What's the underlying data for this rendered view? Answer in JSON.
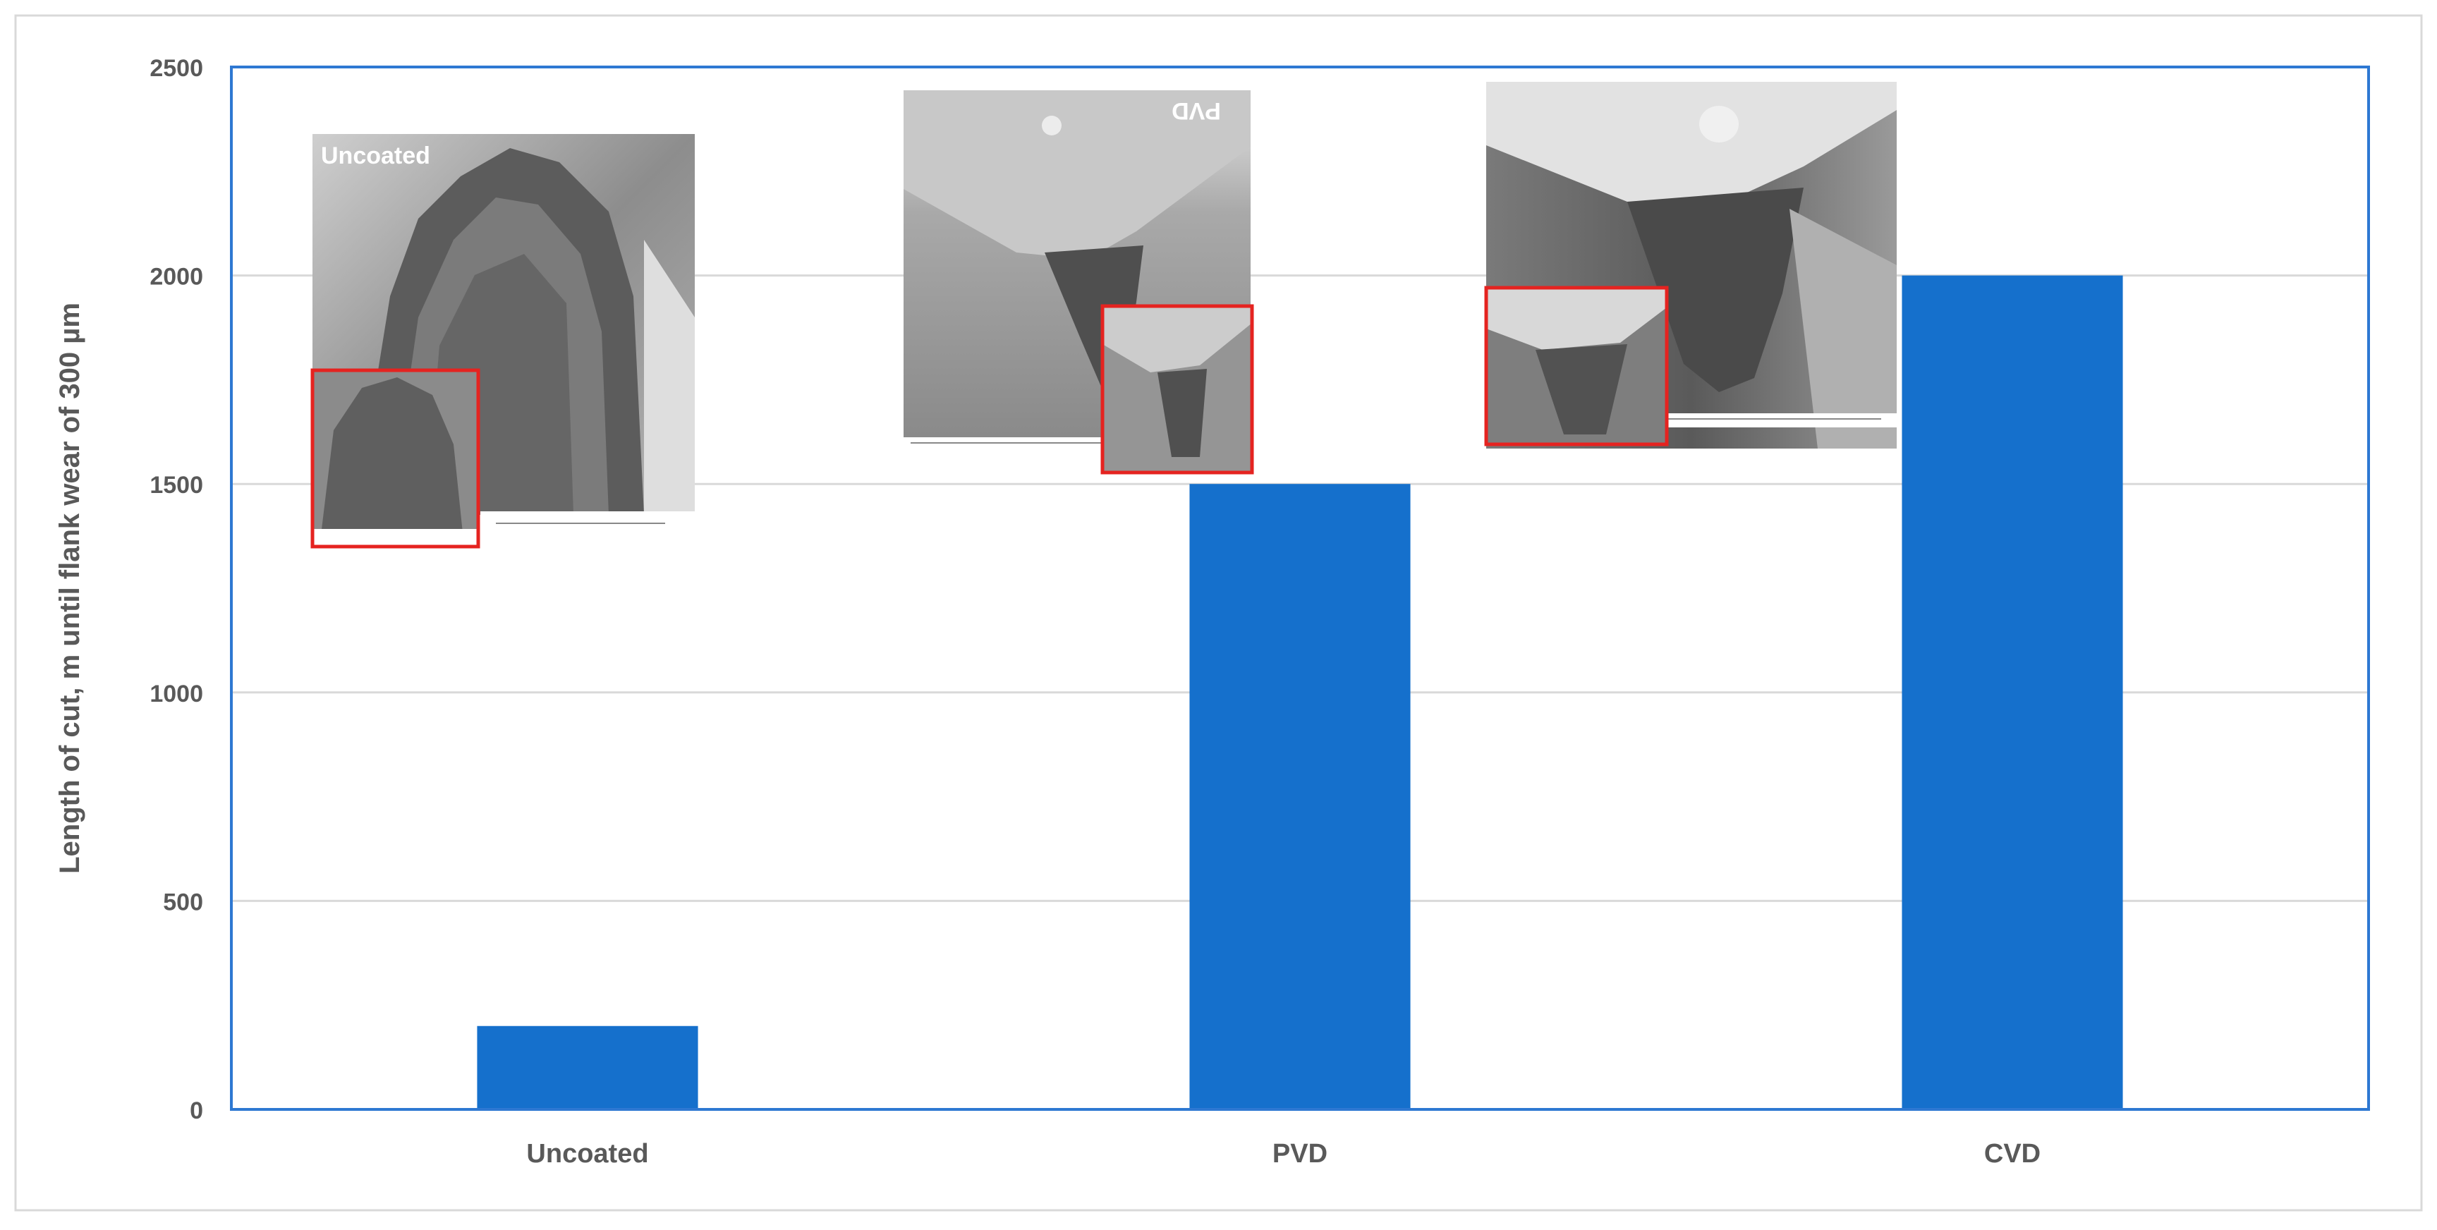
{
  "chart_data": {
    "type": "bar",
    "categories": [
      "Uncoated",
      "PVD",
      "CVD"
    ],
    "values": [
      200,
      1500,
      2000
    ],
    "ylabel": "Length of cut, m until flank wear of 300 µm",
    "xlabel": "",
    "ylim": [
      0,
      2500
    ],
    "yticks": [
      0,
      500,
      1000,
      1500,
      2000,
      2500
    ],
    "grid": true,
    "legend": "none",
    "colors": {
      "bar": "#1570CC",
      "plot_border": "#2E78D2",
      "grid": "#D9D9D9",
      "inset_box": "#E52320",
      "text": "#595959"
    }
  },
  "insets": [
    {
      "category": "Uncoated",
      "label": "Uncoated",
      "icon": "sem-micrograph-uncoated-tool"
    },
    {
      "category": "PVD",
      "label": "PVD",
      "icon": "sem-micrograph-pvd-tool"
    },
    {
      "category": "CVD",
      "label": "CVD",
      "icon": "sem-micrograph-cvd-tool"
    }
  ]
}
